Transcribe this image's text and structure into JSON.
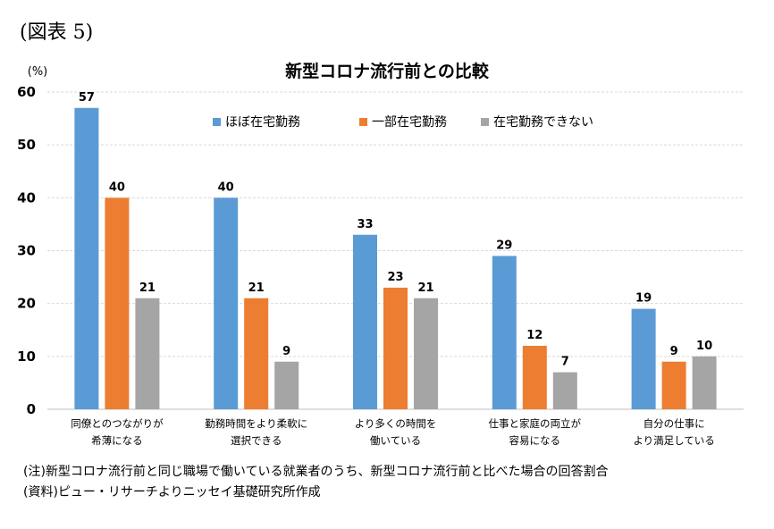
{
  "figure_label": "(図表 5)",
  "notes": [
    "(注)新型コロナ流行前と同じ職場で働いている就業者のうち、新型コロナ流行前と比べた場合の回答割合",
    "(資料)ピュー・リサーチよりニッセイ基礎研究所作成"
  ],
  "chart_data": {
    "type": "bar",
    "title": "新型コロナ流行前との比較",
    "ylabel": "(%)",
    "ylim": [
      0,
      60
    ],
    "yticks": [
      0,
      10,
      20,
      30,
      40,
      50,
      60
    ],
    "grid": true,
    "legend_position": "top",
    "categories": [
      [
        "同僚とのつながりが",
        "希薄になる"
      ],
      [
        "勤務時間をより柔軟に",
        "選択できる"
      ],
      [
        "より多くの時間を",
        "働いている"
      ],
      [
        "仕事と家庭の両立が",
        "容易になる"
      ],
      [
        "自分の仕事に",
        "より満足している"
      ]
    ],
    "series": [
      {
        "name": "ほぼ在宅勤務",
        "color": "#5b9bd5",
        "values": [
          57,
          40,
          33,
          29,
          19
        ]
      },
      {
        "name": "一部在宅勤務",
        "color": "#ed7d31",
        "values": [
          40,
          21,
          23,
          12,
          9
        ]
      },
      {
        "name": "在宅勤務できない",
        "color": "#a5a5a5",
        "values": [
          21,
          9,
          21,
          7,
          10
        ]
      }
    ]
  }
}
